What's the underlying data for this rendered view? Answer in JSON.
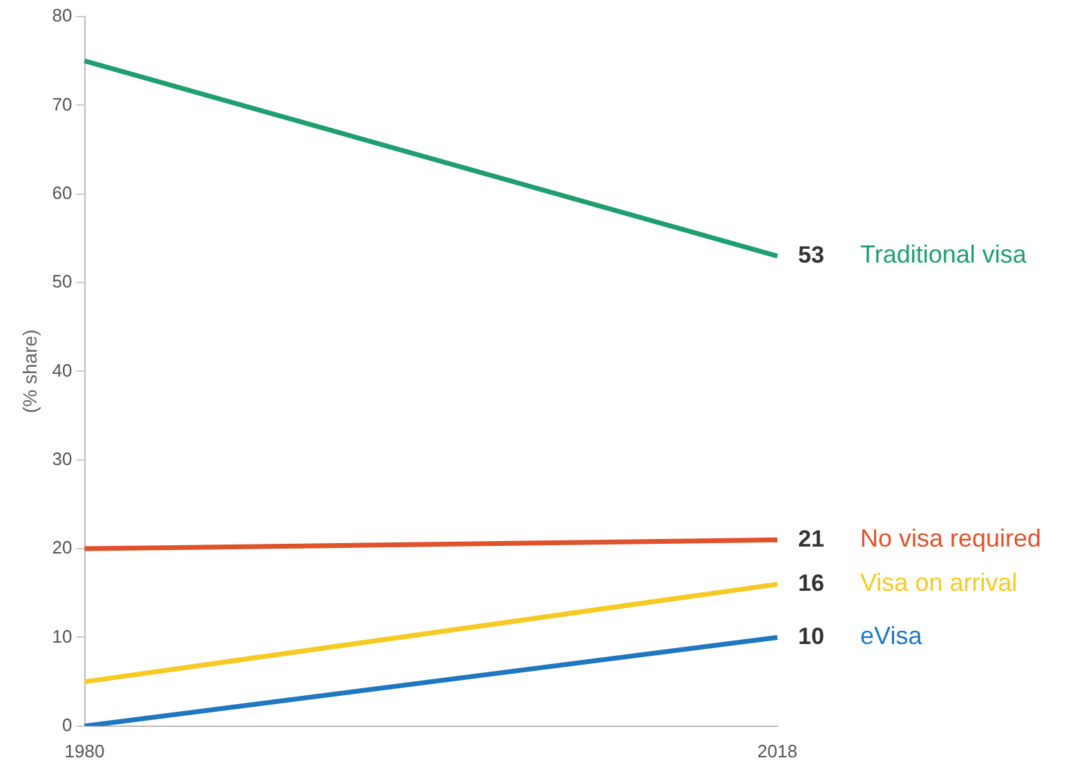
{
  "chart_data": {
    "type": "line",
    "ylabel": "(% share)",
    "categories": [
      "1980",
      "2018"
    ],
    "series": [
      {
        "name": "Traditional visa",
        "color": "#1f9e6f",
        "values": [
          75,
          53
        ],
        "value_labels": [
          null,
          "53"
        ]
      },
      {
        "name": "No visa required",
        "color": "#e0522b",
        "values": [
          20,
          21
        ],
        "value_labels": [
          null,
          "21"
        ]
      },
      {
        "name": "Visa on arrival",
        "color": "#f7c923",
        "values": [
          5,
          16
        ],
        "value_labels": [
          null,
          "16"
        ]
      },
      {
        "name": "eVisa",
        "color": "#1f77bf",
        "values": [
          0,
          10
        ],
        "value_labels": [
          null,
          "10"
        ]
      }
    ],
    "ylim": [
      0,
      80
    ],
    "yticks": [
      0,
      10,
      20,
      30,
      40,
      50,
      60,
      70,
      80
    ],
    "grid": false,
    "legend": false,
    "marker": "none",
    "line_style": "solid"
  }
}
